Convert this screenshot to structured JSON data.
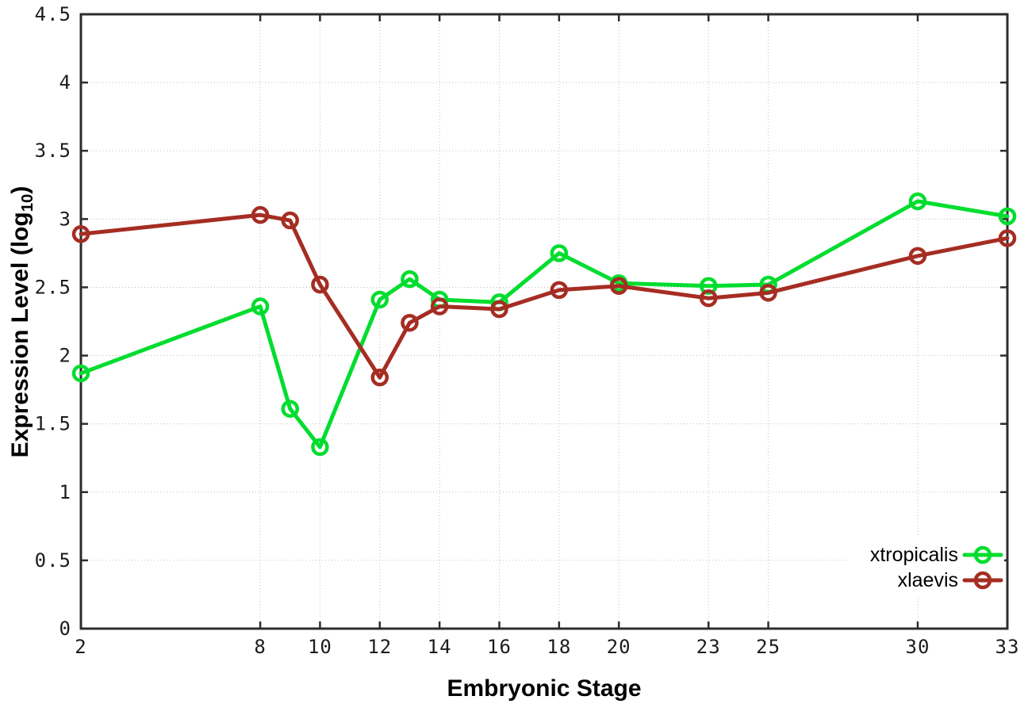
{
  "chart_data": {
    "type": "line",
    "title": "",
    "xlabel": "Embryonic Stage",
    "ylabel": "Expression Level (log10)",
    "ylabel_parts": {
      "prefix": "Expression Level (log",
      "sub": "10",
      "suffix": ")"
    },
    "x": [
      2,
      8,
      9,
      10,
      12,
      13,
      14,
      16,
      18,
      20,
      23,
      25,
      30,
      33
    ],
    "series": [
      {
        "name": "xtropicalis",
        "color": "#00dd2e",
        "marker": "open-circle",
        "values": [
          1.87,
          2.36,
          1.61,
          1.33,
          2.41,
          2.56,
          2.41,
          2.39,
          2.75,
          2.53,
          2.51,
          2.52,
          3.13,
          3.02
        ]
      },
      {
        "name": "xlaevis",
        "color": "#a52d23",
        "marker": "open-circle",
        "values": [
          2.89,
          3.03,
          2.99,
          2.52,
          1.84,
          2.24,
          2.36,
          2.34,
          2.48,
          2.51,
          2.42,
          2.46,
          2.73,
          2.86
        ]
      }
    ],
    "xlim": [
      2,
      33
    ],
    "ylim": [
      0,
      4.5
    ],
    "xtick_labels": [
      "2",
      "8",
      "10",
      "12",
      "14",
      "16",
      "18",
      "20",
      "23",
      "25",
      "30",
      "33"
    ],
    "xtick_values": [
      2,
      8,
      10,
      12,
      14,
      16,
      18,
      20,
      23,
      25,
      30,
      33
    ],
    "ytick_labels": [
      "0",
      "0.5",
      "1",
      "1.5",
      "2",
      "2.5",
      "3",
      "3.5",
      "4",
      "4.5"
    ],
    "ytick_values": [
      0,
      0.5,
      1,
      1.5,
      2,
      2.5,
      3,
      3.5,
      4,
      4.5
    ],
    "grid": "dotted",
    "legend_position": "inside-bottom-right"
  },
  "colors": {
    "background": "#ffffff",
    "axis_border": "#2d2d2d",
    "grid_line": "#bfbfbf",
    "tick_text": "#1c1c1c",
    "series_green": "#00dd2e",
    "series_darkred": "#a52d23"
  }
}
